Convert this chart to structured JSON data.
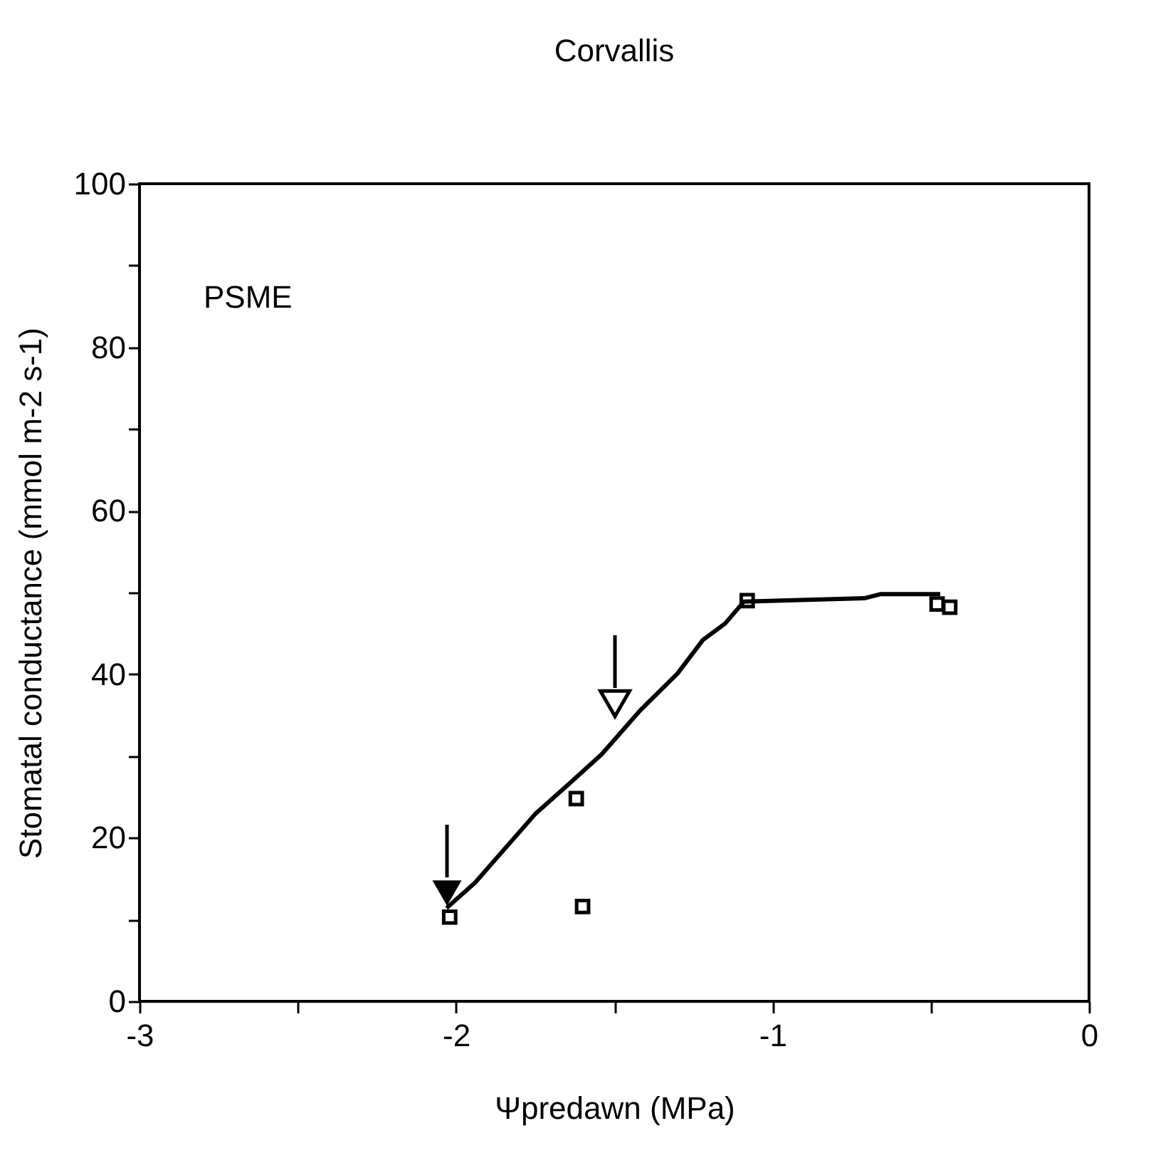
{
  "chart_data": {
    "type": "scatter",
    "title": "Corvallis",
    "xlabel": "Ψpredawn (MPa)",
    "ylabel": "Stomatal conductance (mmol m-2 s-1)",
    "annotations": [
      "PSME"
    ],
    "series": [
      {
        "color": "#000000",
        "marker": "square",
        "x": [
          -2.02,
          -1.62,
          -1.6,
          -1.08,
          -0.48,
          -0.44
        ],
        "values": [
          10.3,
          24.8,
          11.6,
          49.0,
          48.6,
          48.2
        ]
      },
      {
        "type": "line",
        "color": "#000000",
        "marker": "none",
        "line_style": "solid",
        "x": [
          -2.03,
          -1.94,
          -1.75,
          -1.64,
          -1.54,
          -1.42,
          -1.3,
          -1.22,
          -1.15,
          -1.09,
          -0.71,
          -0.66,
          -0.47
        ],
        "values": [
          11.4,
          14.5,
          22.9,
          26.7,
          30.2,
          35.5,
          40.1,
          44.2,
          46.2,
          48.9,
          49.3,
          49.8,
          49.8
        ]
      }
    ],
    "xlim": [
      -3,
      0
    ],
    "ylim": [
      0,
      100
    ],
    "xticks": [
      -3,
      {
        "value": -2.5,
        "label": null
      },
      -2,
      {
        "value": -1.5,
        "label": null
      },
      -1,
      {
        "value": -0.5,
        "label": null
      },
      0
    ],
    "yticks": [
      0,
      {
        "value": 10,
        "label": null
      },
      20,
      {
        "value": 30,
        "label": null
      },
      40,
      {
        "value": 50,
        "label": null
      },
      60,
      {
        "value": 70,
        "label": null
      },
      80,
      {
        "value": 90,
        "label": null
      },
      100
    ],
    "grid": false
  }
}
